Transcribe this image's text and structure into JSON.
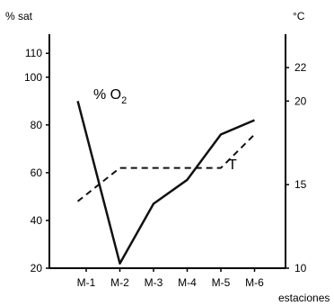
{
  "chart_data": {
    "type": "line",
    "title": "",
    "xlabel": "estaciones",
    "ylabel_left": "% sat",
    "ylabel_right": "°C",
    "categories": [
      "M-1",
      "M-2",
      "M-3",
      "M-4",
      "M-5",
      "M-6"
    ],
    "y_left": {
      "min": 20,
      "max": 118,
      "ticks": [
        "20",
        "40",
        "60",
        "80",
        "100",
        "110"
      ],
      "tick_values": [
        20,
        40,
        60,
        80,
        100,
        110
      ]
    },
    "y_right": {
      "min": 10,
      "max": 24,
      "ticks": [
        "10",
        "15",
        "20",
        "22"
      ],
      "tick_values": [
        10,
        15,
        20,
        22
      ]
    },
    "grid": false,
    "legend": "none",
    "series": [
      {
        "name": "% O",
        "name_subscript": "2",
        "axis": "left",
        "style": "solid",
        "color": "#111111",
        "x": [
          0.75,
          2,
          3,
          4,
          5,
          6
        ],
        "values": [
          90,
          22,
          47,
          57,
          76,
          82
        ]
      },
      {
        "name": "T",
        "axis": "right",
        "style": "dashed",
        "color": "#111111",
        "x": [
          0.75,
          2,
          3,
          4,
          5,
          6
        ],
        "values": [
          14,
          16,
          16,
          16,
          16,
          18
        ]
      }
    ]
  }
}
